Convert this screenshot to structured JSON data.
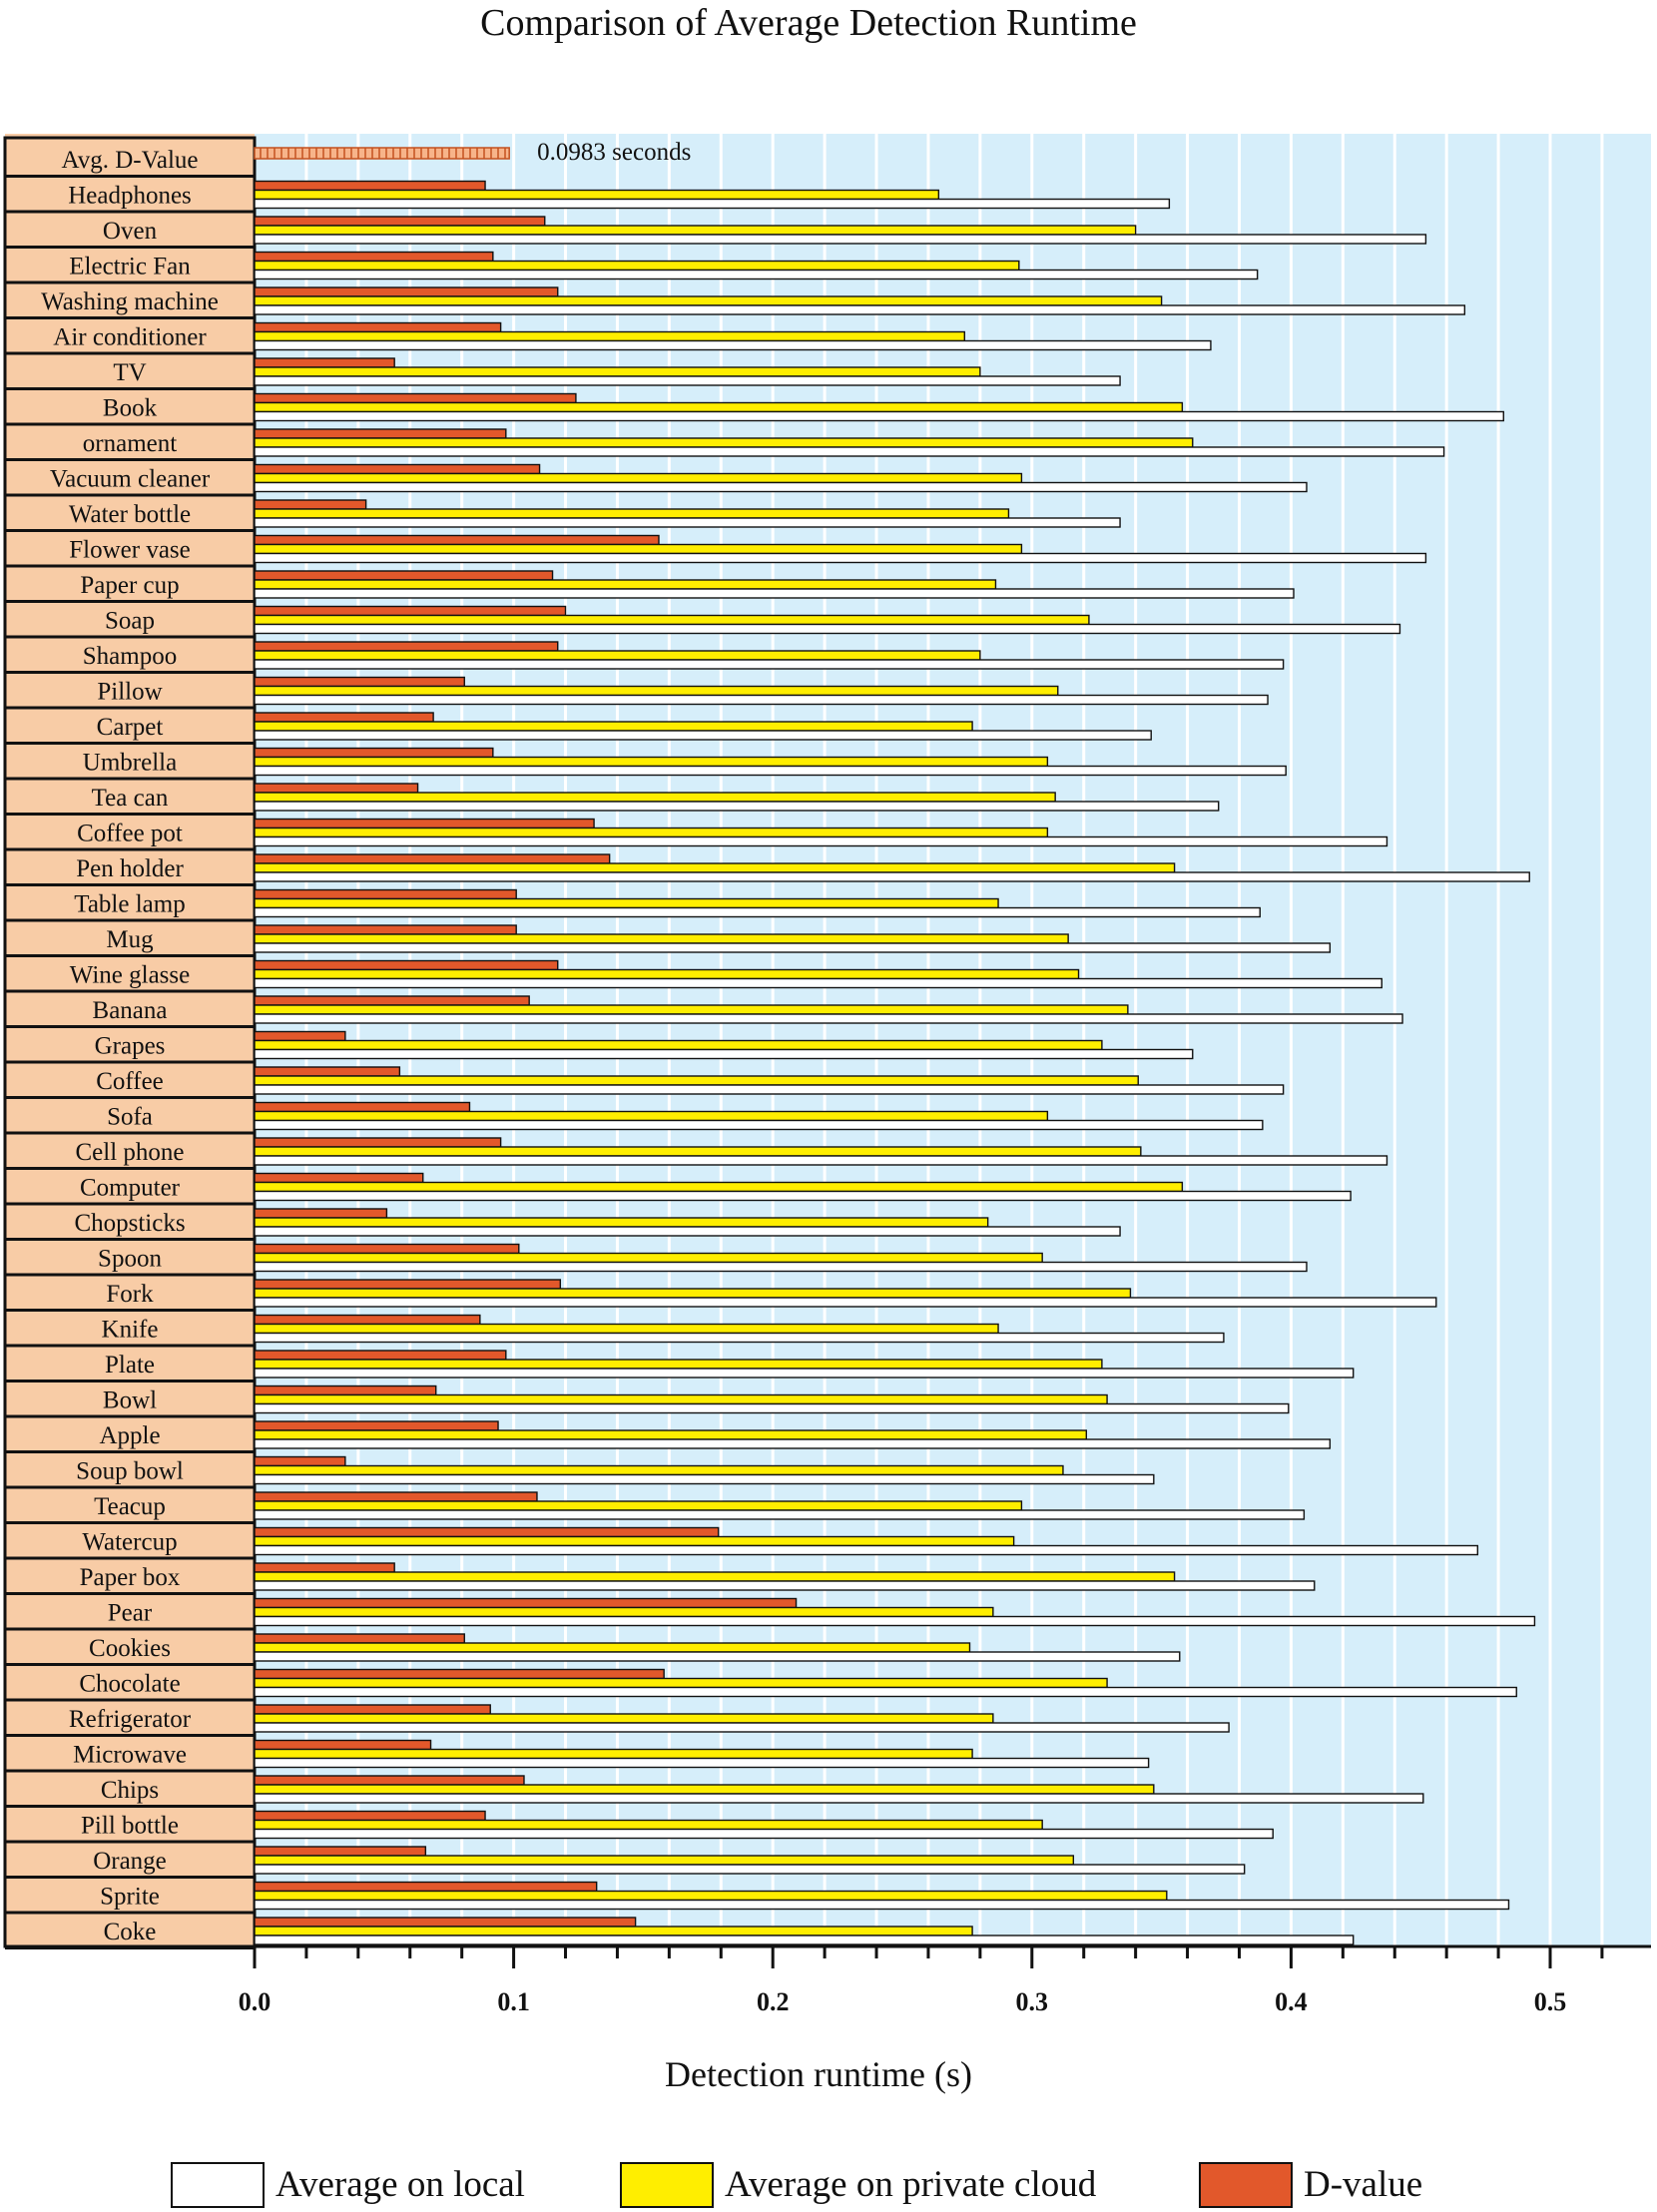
{
  "chart_data": {
    "type": "bar",
    "orientation": "horizontal",
    "title": "Comparison of Average Detection Runtime",
    "xlabel": "Detection runtime (s)",
    "ylabel": "",
    "xlim": [
      0,
      0.54
    ],
    "x_ticks": [
      "0.0",
      "0.1",
      "0.2",
      "0.3",
      "0.4",
      "0.5"
    ],
    "x_tick_values": [
      0,
      0.1,
      0.2,
      0.3,
      0.4,
      0.5
    ],
    "grid": true,
    "legend_position": "bottom",
    "summary": {
      "label": "Avg. D-Value",
      "value": 0.0983,
      "annotation": "0.0983 seconds"
    },
    "categories": [
      "Headphones",
      "Oven",
      "Electric Fan",
      "Washing machine",
      "Air conditioner",
      "TV",
      "Book",
      "ornament",
      "Vacuum cleaner",
      "Water bottle",
      "Flower vase",
      "Paper cup",
      "Soap",
      "Shampoo",
      "Pillow",
      "Carpet",
      "Umbrella",
      "Tea can",
      "Coffee pot",
      "Pen holder",
      "Table lamp",
      "Mug",
      "Wine glasse",
      "Banana",
      "Grapes",
      "Coffee",
      "Sofa",
      "Cell phone",
      "Computer",
      "Chopsticks",
      "Spoon",
      "Fork",
      "Knife",
      "Plate",
      "Bowl",
      "Apple",
      "Soup bowl",
      "Teacup",
      "Watercup",
      "Paper box",
      "Pear",
      "Cookies",
      "Chocolate",
      "Refrigerator",
      "Microwave",
      "Chips",
      "Pill bottle",
      "Orange",
      "Sprite",
      "Coke"
    ],
    "series": [
      {
        "name": "D-value",
        "color": "#E2582B",
        "values": [
          0.089,
          0.112,
          0.092,
          0.117,
          0.095,
          0.054,
          0.124,
          0.097,
          0.11,
          0.043,
          0.156,
          0.115,
          0.12,
          0.117,
          0.081,
          0.069,
          0.092,
          0.063,
          0.131,
          0.137,
          0.101,
          0.101,
          0.117,
          0.106,
          0.035,
          0.056,
          0.083,
          0.095,
          0.065,
          0.051,
          0.102,
          0.118,
          0.087,
          0.097,
          0.07,
          0.094,
          0.035,
          0.109,
          0.179,
          0.054,
          0.209,
          0.081,
          0.158,
          0.091,
          0.068,
          0.104,
          0.089,
          0.066,
          0.132,
          0.147
        ]
      },
      {
        "name": "Average on private cloud",
        "color": "#FFEE00",
        "values": [
          0.264,
          0.34,
          0.295,
          0.35,
          0.274,
          0.28,
          0.358,
          0.362,
          0.296,
          0.291,
          0.296,
          0.286,
          0.322,
          0.28,
          0.31,
          0.277,
          0.306,
          0.309,
          0.306,
          0.355,
          0.287,
          0.314,
          0.318,
          0.337,
          0.327,
          0.341,
          0.306,
          0.342,
          0.358,
          0.283,
          0.304,
          0.338,
          0.287,
          0.327,
          0.329,
          0.321,
          0.312,
          0.296,
          0.293,
          0.355,
          0.285,
          0.276,
          0.329,
          0.285,
          0.277,
          0.347,
          0.304,
          0.316,
          0.352,
          0.277
        ]
      },
      {
        "name": "Average on local",
        "color": "#FFFFFF",
        "values": [
          0.353,
          0.452,
          0.387,
          0.467,
          0.369,
          0.334,
          0.482,
          0.459,
          0.406,
          0.334,
          0.452,
          0.401,
          0.442,
          0.397,
          0.391,
          0.346,
          0.398,
          0.372,
          0.437,
          0.492,
          0.388,
          0.415,
          0.435,
          0.443,
          0.362,
          0.397,
          0.389,
          0.437,
          0.423,
          0.334,
          0.406,
          0.456,
          0.374,
          0.424,
          0.399,
          0.415,
          0.347,
          0.405,
          0.472,
          0.409,
          0.494,
          0.357,
          0.487,
          0.376,
          0.345,
          0.451,
          0.393,
          0.382,
          0.484,
          0.424
        ]
      }
    ],
    "legend": [
      {
        "label": "Average on local",
        "color": "#FFFFFF"
      },
      {
        "label": "Average on private cloud",
        "color": "#FFEE00"
      },
      {
        "label": "D-value",
        "color": "#E2582B"
      }
    ],
    "colors": {
      "plot_background": "#D6EEFA",
      "label_column": "#F8CCA6",
      "grid": "#FFFFFF"
    }
  }
}
